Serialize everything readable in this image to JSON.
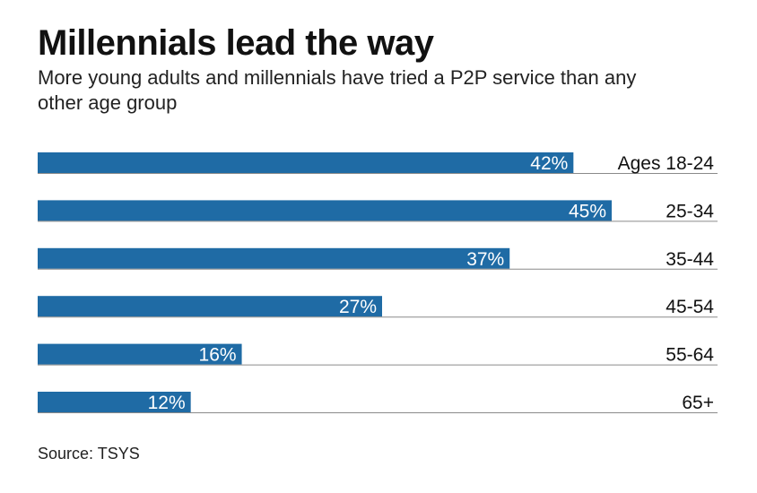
{
  "title": "Millennials lead the way",
  "subtitle": "More young adults and millennials have tried a P2P service than any other age group",
  "source": "Source: TSYS",
  "chart_data": {
    "type": "bar",
    "orientation": "horizontal",
    "title": "Millennials lead the way",
    "subtitle": "More young adults and millennials have tried a P2P service than any other age group",
    "categories": [
      "Ages 18-24",
      "25-34",
      "35-44",
      "45-54",
      "55-64",
      "65+"
    ],
    "values": [
      42,
      45,
      37,
      27,
      16,
      12
    ],
    "value_labels": [
      "42%",
      "45%",
      "37%",
      "27%",
      "16%",
      "12%"
    ],
    "unit": "%",
    "xlim": [
      0,
      45
    ],
    "bar_color": "#1f6ba5",
    "label_color": "#ffffff",
    "gridlines": false,
    "category_label_position": "right"
  }
}
